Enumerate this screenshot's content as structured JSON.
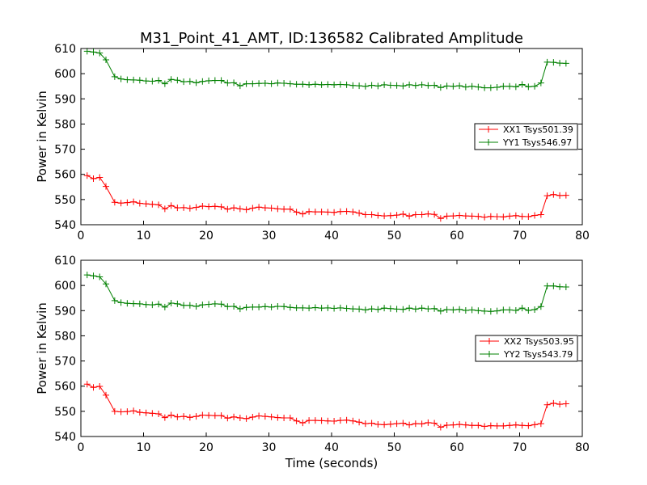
{
  "title": "M31_Point_41_AMT, ID:136582 Calibrated Amplitude",
  "chart_data": [
    {
      "type": "line",
      "ylabel": "Power in Kelvin",
      "xlabel": "",
      "xlim": [
        0,
        80
      ],
      "ylim": [
        540,
        610
      ],
      "xticks": [
        "0",
        "10",
        "20",
        "30",
        "40",
        "50",
        "60",
        "70",
        "80"
      ],
      "yticks": [
        "540",
        "550",
        "560",
        "570",
        "580",
        "590",
        "600",
        "610"
      ],
      "legend_position": "right",
      "x": [
        1.0,
        2.0,
        3.0,
        4.0,
        5.4,
        6.4,
        7.4,
        8.4,
        9.4,
        10.4,
        11.4,
        12.4,
        13.4,
        14.4,
        15.4,
        16.4,
        17.4,
        18.4,
        19.4,
        20.4,
        21.4,
        22.4,
        23.4,
        24.4,
        25.4,
        26.4,
        27.4,
        28.4,
        29.4,
        30.4,
        31.4,
        32.4,
        33.4,
        34.4,
        35.4,
        36.4,
        37.4,
        38.4,
        39.4,
        40.4,
        41.4,
        42.4,
        43.4,
        44.4,
        45.4,
        46.4,
        47.4,
        48.4,
        49.4,
        50.4,
        51.4,
        52.4,
        53.4,
        54.4,
        55.4,
        56.4,
        57.4,
        58.4,
        59.4,
        60.4,
        61.4,
        62.4,
        63.4,
        64.4,
        65.4,
        66.4,
        67.4,
        68.4,
        69.4,
        70.4,
        71.4,
        72.4,
        73.4,
        74.4,
        75.4,
        76.4,
        77.4
      ],
      "series": [
        {
          "name": "XX1 Tsys501.39",
          "color": "#ff0000",
          "values": [
            559.5,
            558.3,
            558.8,
            555.2,
            548.9,
            548.6,
            548.8,
            549.1,
            548.5,
            548.3,
            548.1,
            547.9,
            546.3,
            547.6,
            546.7,
            546.8,
            546.5,
            546.9,
            547.4,
            547.2,
            547.3,
            547.1,
            546.2,
            546.7,
            546.3,
            546.0,
            546.6,
            547.0,
            546.7,
            546.6,
            546.3,
            546.2,
            546.2,
            545.0,
            544.3,
            545.2,
            545.1,
            545.1,
            545.0,
            544.9,
            545.2,
            545.3,
            545.1,
            544.6,
            544.0,
            544.0,
            543.7,
            543.5,
            543.6,
            543.8,
            544.2,
            543.4,
            544.0,
            544.0,
            544.3,
            544.1,
            542.5,
            543.4,
            543.5,
            543.7,
            543.5,
            543.4,
            543.3,
            543.0,
            543.3,
            543.2,
            543.1,
            543.4,
            543.6,
            543.3,
            543.2,
            543.7,
            544.0,
            551.5,
            552.0,
            551.6,
            551.7
          ]
        },
        {
          "name": "YY1 Tsys546.97",
          "color": "#008000",
          "values": [
            608.9,
            608.6,
            608.2,
            605.5,
            598.8,
            597.9,
            597.6,
            597.5,
            597.4,
            597.1,
            597.0,
            597.3,
            596.0,
            597.7,
            597.4,
            596.8,
            596.9,
            596.4,
            596.9,
            597.2,
            597.3,
            597.3,
            596.3,
            596.4,
            595.2,
            596.0,
            596.0,
            596.1,
            596.2,
            596.0,
            596.3,
            596.2,
            596.0,
            595.8,
            595.8,
            595.6,
            595.8,
            595.6,
            595.7,
            595.6,
            595.7,
            595.6,
            595.3,
            595.2,
            595.0,
            595.4,
            595.1,
            595.6,
            595.4,
            595.3,
            595.1,
            595.6,
            595.3,
            595.6,
            595.3,
            595.4,
            594.5,
            595.1,
            595.0,
            595.2,
            594.7,
            595.0,
            594.7,
            594.4,
            594.4,
            594.6,
            595.0,
            595.0,
            594.8,
            595.7,
            594.8,
            595.0,
            596.3,
            604.6,
            604.5,
            604.2,
            604.1
          ]
        }
      ]
    },
    {
      "type": "line",
      "ylabel": "Power in Kelvin",
      "xlabel": "Time (seconds)",
      "xlim": [
        0,
        80
      ],
      "ylim": [
        540,
        610
      ],
      "xticks": [
        "0",
        "10",
        "20",
        "30",
        "40",
        "50",
        "60",
        "70",
        "80"
      ],
      "yticks": [
        "540",
        "550",
        "560",
        "570",
        "580",
        "590",
        "600",
        "610"
      ],
      "legend_position": "right",
      "x": [
        1.0,
        2.0,
        3.0,
        4.0,
        5.4,
        6.4,
        7.4,
        8.4,
        9.4,
        10.4,
        11.4,
        12.4,
        13.4,
        14.4,
        15.4,
        16.4,
        17.4,
        18.4,
        19.4,
        20.4,
        21.4,
        22.4,
        23.4,
        24.4,
        25.4,
        26.4,
        27.4,
        28.4,
        29.4,
        30.4,
        31.4,
        32.4,
        33.4,
        34.4,
        35.4,
        36.4,
        37.4,
        38.4,
        39.4,
        40.4,
        41.4,
        42.4,
        43.4,
        44.4,
        45.4,
        46.4,
        47.4,
        48.4,
        49.4,
        50.4,
        51.4,
        52.4,
        53.4,
        54.4,
        55.4,
        56.4,
        57.4,
        58.4,
        59.4,
        60.4,
        61.4,
        62.4,
        63.4,
        64.4,
        65.4,
        66.4,
        67.4,
        68.4,
        69.4,
        70.4,
        71.4,
        72.4,
        73.4,
        74.4,
        75.4,
        76.4,
        77.4
      ],
      "series": [
        {
          "name": "XX2 Tsys503.95",
          "color": "#ff0000",
          "values": [
            560.8,
            559.5,
            559.9,
            556.4,
            550.0,
            549.8,
            549.9,
            550.2,
            549.6,
            549.4,
            549.2,
            549.0,
            547.5,
            548.5,
            547.8,
            548.0,
            547.6,
            548.0,
            548.5,
            548.4,
            548.3,
            548.3,
            547.3,
            547.8,
            547.4,
            547.1,
            547.7,
            548.2,
            548.0,
            547.8,
            547.5,
            547.4,
            547.4,
            546.2,
            545.4,
            546.4,
            546.4,
            546.3,
            546.2,
            546.1,
            546.4,
            546.5,
            546.2,
            545.7,
            545.1,
            545.3,
            544.8,
            544.7,
            544.9,
            545.1,
            545.3,
            544.6,
            545.1,
            545.0,
            545.5,
            545.3,
            543.7,
            544.5,
            544.6,
            544.8,
            544.6,
            544.4,
            544.4,
            544.0,
            544.3,
            544.2,
            544.2,
            544.4,
            544.6,
            544.4,
            544.3,
            544.7,
            545.1,
            552.6,
            553.2,
            552.8,
            553.0
          ]
        },
        {
          "name": "YY2 Tsys543.79",
          "color": "#008000",
          "values": [
            604.2,
            603.8,
            603.4,
            600.6,
            594.0,
            593.2,
            592.9,
            592.8,
            592.7,
            592.4,
            592.3,
            592.6,
            591.4,
            593.0,
            592.7,
            592.1,
            592.1,
            591.7,
            592.3,
            592.5,
            592.7,
            592.6,
            591.6,
            591.7,
            590.7,
            591.3,
            591.4,
            591.4,
            591.6,
            591.4,
            591.7,
            591.6,
            591.3,
            591.1,
            591.1,
            591.0,
            591.2,
            591.0,
            591.1,
            590.9,
            591.1,
            590.9,
            590.7,
            590.6,
            590.3,
            590.7,
            590.5,
            591.0,
            590.8,
            590.6,
            590.5,
            591.0,
            590.6,
            591.0,
            590.7,
            590.8,
            589.8,
            590.4,
            590.3,
            590.5,
            590.1,
            590.3,
            590.0,
            589.8,
            589.7,
            589.9,
            590.3,
            590.3,
            590.1,
            591.0,
            590.1,
            590.4,
            591.6,
            599.8,
            599.8,
            599.5,
            599.4
          ]
        }
      ]
    }
  ]
}
